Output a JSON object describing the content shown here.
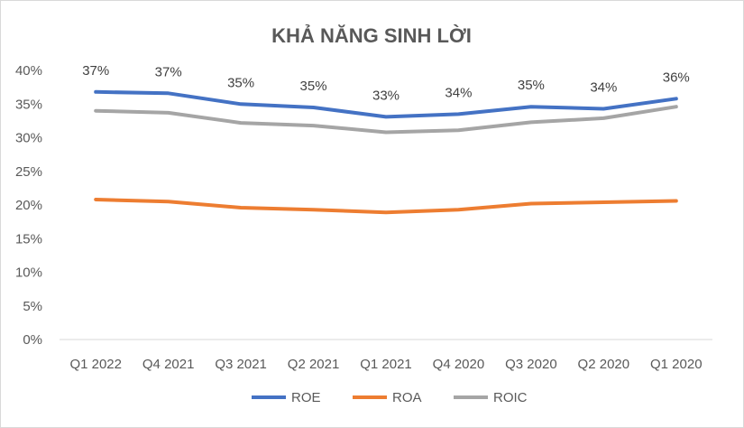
{
  "chart_data": {
    "type": "line",
    "title": "KHẢ NĂNG SINH LỜI",
    "categories": [
      "Q1 2022",
      "Q4 2021",
      "Q3 2021",
      "Q2 2021",
      "Q1 2021",
      "Q4 2020",
      "Q3 2020",
      "Q2 2020",
      "Q1 2020"
    ],
    "y_ticks": [
      "0%",
      "5%",
      "10%",
      "15%",
      "20%",
      "25%",
      "30%",
      "35%",
      "40%"
    ],
    "ylim": [
      0,
      40
    ],
    "grid": false,
    "legend": "bottom",
    "series": [
      {
        "name": "ROE",
        "color": "#4472C4",
        "values": [
          36.8,
          36.6,
          35.0,
          34.5,
          33.1,
          33.5,
          34.6,
          34.3,
          35.8
        ],
        "labels": [
          "37%",
          "37%",
          "35%",
          "35%",
          "33%",
          "34%",
          "35%",
          "34%",
          "36%"
        ]
      },
      {
        "name": "ROA",
        "color": "#ED7D31",
        "values": [
          20.8,
          20.5,
          19.6,
          19.3,
          18.9,
          19.3,
          20.2,
          20.4,
          20.6
        ]
      },
      {
        "name": "ROIC",
        "color": "#A5A5A5",
        "values": [
          34.0,
          33.7,
          32.2,
          31.8,
          30.8,
          31.1,
          32.3,
          32.9,
          34.6
        ]
      }
    ]
  }
}
